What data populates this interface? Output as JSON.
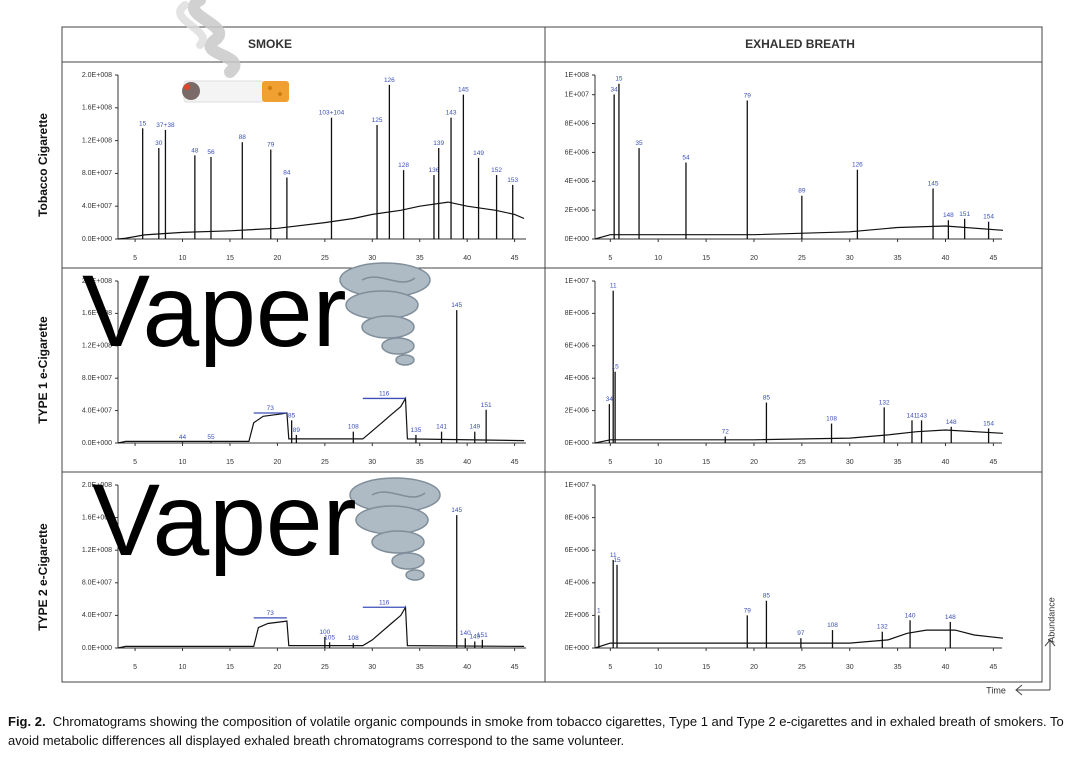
{
  "figure": {
    "columns": [
      "SMOKE",
      "EXHALED BREATH"
    ],
    "rows": [
      "Tobacco Cigarette",
      "TYPE 1 e-Cigarette",
      "TYPE 2 e-Cigarette"
    ],
    "overlay_text": [
      "Vaper",
      "Vaper"
    ],
    "axis_hints": {
      "x": "Time",
      "y": "Abundance"
    }
  },
  "caption": {
    "label": "Fig. 2.",
    "text": "Chromatograms showing the composition of volatile organic compounds in smoke from tobacco cigarettes, Type 1 and Type 2 e-cigarettes and in exhaled breath of smokers. To avoid metabolic differences all displayed exhaled breath chromatograms correspond to the same volunteer."
  },
  "chart_data": [
    {
      "type": "chromatogram",
      "color": "#111111",
      "label_color": "#3b4fb8",
      "xlim": [
        3.2,
        46.2
      ],
      "xticks": [
        5,
        10,
        15,
        20,
        25,
        30,
        35,
        40,
        45
      ],
      "ylim": [
        0,
        200000000
      ],
      "yticks": [
        {
          "value": 0,
          "label": "0.0E+000"
        },
        {
          "value": 40000000,
          "label": "4.0E+007"
        },
        {
          "value": 80000000,
          "label": "8.0E+007"
        },
        {
          "value": 120000000,
          "label": "1.2E+008"
        },
        {
          "value": 160000000,
          "label": "1.6E+008"
        },
        {
          "value": 200000000,
          "label": "2.0E+008"
        }
      ],
      "x": [
        5.8,
        7.5,
        8.2,
        11.3,
        13,
        16.3,
        19.3,
        21,
        25.7,
        30.5,
        31.8,
        33.3,
        36.5,
        37,
        38.3,
        39.6,
        41.2,
        43.1,
        44.8
      ],
      "values": [
        135000000,
        111000000,
        133000000,
        102000000,
        100000000,
        118000000,
        109000000,
        75000000,
        148000000,
        139000000,
        188000000,
        84000000,
        78000000,
        111000000,
        148000000,
        176000000,
        99000000,
        78000000,
        66000000
      ],
      "peak_labels": [
        "15",
        "30",
        "37+38",
        "48",
        "56",
        "88",
        "79",
        "84",
        "103+104",
        "125",
        "126",
        "128",
        "136",
        "139",
        "143",
        "145",
        "149",
        "152",
        "153"
      ],
      "baseline_x": [
        3.2,
        4,
        6,
        10,
        15,
        20,
        25,
        28,
        30,
        33,
        35,
        38,
        40,
        43,
        45,
        46
      ],
      "baseline_values": [
        0,
        1000000,
        5000000,
        8000000,
        10000000,
        13000000,
        20000000,
        25000000,
        30000000,
        35000000,
        40000000,
        45000000,
        40000000,
        35000000,
        30000000,
        25000000
      ]
    },
    {
      "type": "chromatogram",
      "color": "#111111",
      "label_color": "#3b4fb8",
      "xlim": [
        3.4,
        45.9
      ],
      "xticks": [
        5,
        10,
        15,
        20,
        25,
        30,
        35,
        40,
        45
      ],
      "ylim": [
        0,
        100000000
      ],
      "ybreak": 10000000,
      "yticks": [
        {
          "value": 0,
          "label": "0E+000"
        },
        {
          "value": 2000000,
          "label": "2E+006"
        },
        {
          "value": 4000000,
          "label": "4E+006"
        },
        {
          "value": 6000000,
          "label": "6E+006"
        },
        {
          "value": 8000000,
          "label": "8E+006"
        },
        {
          "value": 10000000,
          "label": "1E+007"
        },
        {
          "value": 100000000,
          "label": "1E+008"
        }
      ],
      "x": [
        5.4,
        5.9,
        8,
        12.9,
        19.3,
        25,
        30.8,
        38.7,
        40.3,
        42,
        44.5
      ],
      "values": [
        11000000,
        60000000,
        6300000,
        5300000,
        9600000,
        3000000,
        4800000,
        3500000,
        1300000,
        1400000,
        1200000
      ],
      "peak_labels": [
        "34",
        "15",
        "35",
        "54",
        "79",
        "89",
        "126",
        "145",
        "148",
        "151",
        "154"
      ],
      "baseline_x": [
        3.4,
        5,
        10,
        20,
        30,
        35,
        40,
        46
      ],
      "baseline_values": [
        0,
        300000,
        300000,
        300000,
        500000,
        800000,
        900000,
        600000
      ]
    },
    {
      "type": "chromatogram",
      "color": "#111111",
      "label_color": "#3b4fb8",
      "xlim": [
        3.2,
        46.2
      ],
      "xticks": [
        5,
        10,
        15,
        20,
        25,
        30,
        35,
        40,
        45
      ],
      "ylim": [
        0,
        200000000
      ],
      "yticks": [
        {
          "value": 0,
          "label": "0.0E+000"
        },
        {
          "value": 40000000,
          "label": "4.0E+007"
        },
        {
          "value": 80000000,
          "label": "8.0E+007"
        },
        {
          "value": 120000000,
          "label": "1.2E+008"
        },
        {
          "value": 160000000,
          "label": "1.6E+008"
        },
        {
          "value": 200000000,
          "label": "2.0E+008"
        }
      ],
      "x": [
        10,
        13,
        21.5,
        22,
        28,
        34.6,
        37.3,
        38.9,
        40.8,
        42
      ],
      "values": [
        1000000,
        1000000,
        28000000,
        10000000,
        14000000,
        10000000,
        14000000,
        164000000,
        14000000,
        41000000
      ],
      "peak_labels": [
        "44",
        "55",
        "85",
        "89",
        "108",
        "135",
        "141",
        "145",
        "149",
        "151"
      ],
      "humps": [
        {
          "label": "73",
          "x": [
            17.5,
            21
          ],
          "value": 37000000
        },
        {
          "label": "116",
          "x": [
            29,
            33.5
          ],
          "value": 55000000
        }
      ],
      "baseline_x": [
        3.2,
        4,
        17,
        17.5,
        18.5,
        20.5,
        21,
        21.2,
        29,
        30,
        31,
        32,
        33,
        33.5,
        33.7,
        46
      ],
      "baseline_values": [
        0,
        2000000,
        2000000,
        25000000,
        33000000,
        36000000,
        37000000,
        5000000,
        5000000,
        15000000,
        25000000,
        35000000,
        45000000,
        55000000,
        5000000,
        3000000
      ]
    },
    {
      "type": "chromatogram",
      "color": "#111111",
      "label_color": "#3b4fb8",
      "xlim": [
        3.4,
        45.9
      ],
      "xticks": [
        5,
        10,
        15,
        20,
        25,
        30,
        35,
        40,
        45
      ],
      "ylim": [
        0,
        10000000
      ],
      "yticks": [
        {
          "value": 0,
          "label": "0E+000"
        },
        {
          "value": 2000000,
          "label": "2E+006"
        },
        {
          "value": 4000000,
          "label": "4E+006"
        },
        {
          "value": 6000000,
          "label": "6E+006"
        },
        {
          "value": 8000000,
          "label": "8E+006"
        },
        {
          "value": 10000000,
          "label": "1E+007"
        }
      ],
      "x": [
        4.9,
        5.3,
        5.5,
        17,
        21.3,
        28.1,
        33.6,
        36.5,
        37.5,
        40.6,
        44.5
      ],
      "values": [
        2400000,
        9400000,
        4400000,
        400000,
        2500000,
        1200000,
        2200000,
        1400000,
        1400000,
        1000000,
        900000
      ],
      "peak_labels": [
        "34",
        "11",
        "15",
        "72",
        "85",
        "108",
        "132",
        "141",
        "143",
        "148",
        "154"
      ],
      "baseline_x": [
        3.4,
        5,
        20,
        30,
        34,
        37,
        40,
        46
      ],
      "baseline_values": [
        0,
        200000,
        200000,
        300000,
        500000,
        700000,
        800000,
        600000
      ]
    },
    {
      "type": "chromatogram",
      "color": "#111111",
      "label_color": "#3b4fb8",
      "xlim": [
        3.2,
        46.2
      ],
      "xticks": [
        5,
        10,
        15,
        20,
        25,
        30,
        35,
        40,
        45
      ],
      "ylim": [
        0,
        200000000
      ],
      "yticks": [
        {
          "value": 0,
          "label": "0.0E+000"
        },
        {
          "value": 40000000,
          "label": "4.0E+007"
        },
        {
          "value": 80000000,
          "label": "8.0E+007"
        },
        {
          "value": 120000000,
          "label": "1.2E+008"
        },
        {
          "value": 160000000,
          "label": "1.6E+008"
        },
        {
          "value": 200000000,
          "label": "2.0E+008"
        }
      ],
      "x": [
        25,
        25.5,
        28,
        38.9,
        39.8,
        40.8,
        41.6
      ],
      "values": [
        13500000,
        7000000,
        6000000,
        163000000,
        12000000,
        8000000,
        10000000
      ],
      "peak_labels": [
        "100",
        "105",
        "108",
        "145",
        "140",
        "149",
        "151"
      ],
      "humps": [
        {
          "label": "73",
          "x": [
            17.5,
            21
          ],
          "value": 37000000
        },
        {
          "label": "116",
          "x": [
            29,
            33.5
          ],
          "value": 50000000
        }
      ],
      "baseline_x": [
        3.2,
        4,
        17.5,
        18,
        19,
        21,
        21.2,
        29,
        30,
        31,
        32,
        33,
        33.5,
        33.7,
        46
      ],
      "baseline_values": [
        0,
        2000000,
        2000000,
        25000000,
        30000000,
        33000000,
        3000000,
        3000000,
        10000000,
        20000000,
        30000000,
        40000000,
        50000000,
        3000000,
        2000000
      ]
    },
    {
      "type": "chromatogram",
      "color": "#111111",
      "label_color": "#3b4fb8",
      "xlim": [
        3.4,
        45.9
      ],
      "xticks": [
        5,
        10,
        15,
        20,
        25,
        30,
        35,
        40,
        45
      ],
      "ylim": [
        0,
        10000000
      ],
      "yticks": [
        {
          "value": 0,
          "label": "0E+000"
        },
        {
          "value": 2000000,
          "label": "2E+006"
        },
        {
          "value": 4000000,
          "label": "4E+006"
        },
        {
          "value": 6000000,
          "label": "6E+006"
        },
        {
          "value": 8000000,
          "label": "8E+006"
        },
        {
          "value": 10000000,
          "label": "1E+007"
        }
      ],
      "x": [
        3.8,
        5.3,
        5.7,
        19.3,
        21.3,
        24.9,
        28.2,
        33.4,
        36.3,
        40.5
      ],
      "values": [
        2000000,
        5400000,
        5100000,
        2000000,
        2900000,
        600000,
        1100000,
        1000000,
        1700000,
        1600000
      ],
      "peak_labels": [
        "1",
        "11",
        "15",
        "79",
        "85",
        "97",
        "108",
        "132",
        "140",
        "148"
      ],
      "baseline_x": [
        3.4,
        5,
        30,
        34,
        36,
        38,
        41,
        43,
        46
      ],
      "baseline_values": [
        0,
        300000,
        300000,
        500000,
        900000,
        1100000,
        1100000,
        800000,
        600000
      ]
    }
  ]
}
